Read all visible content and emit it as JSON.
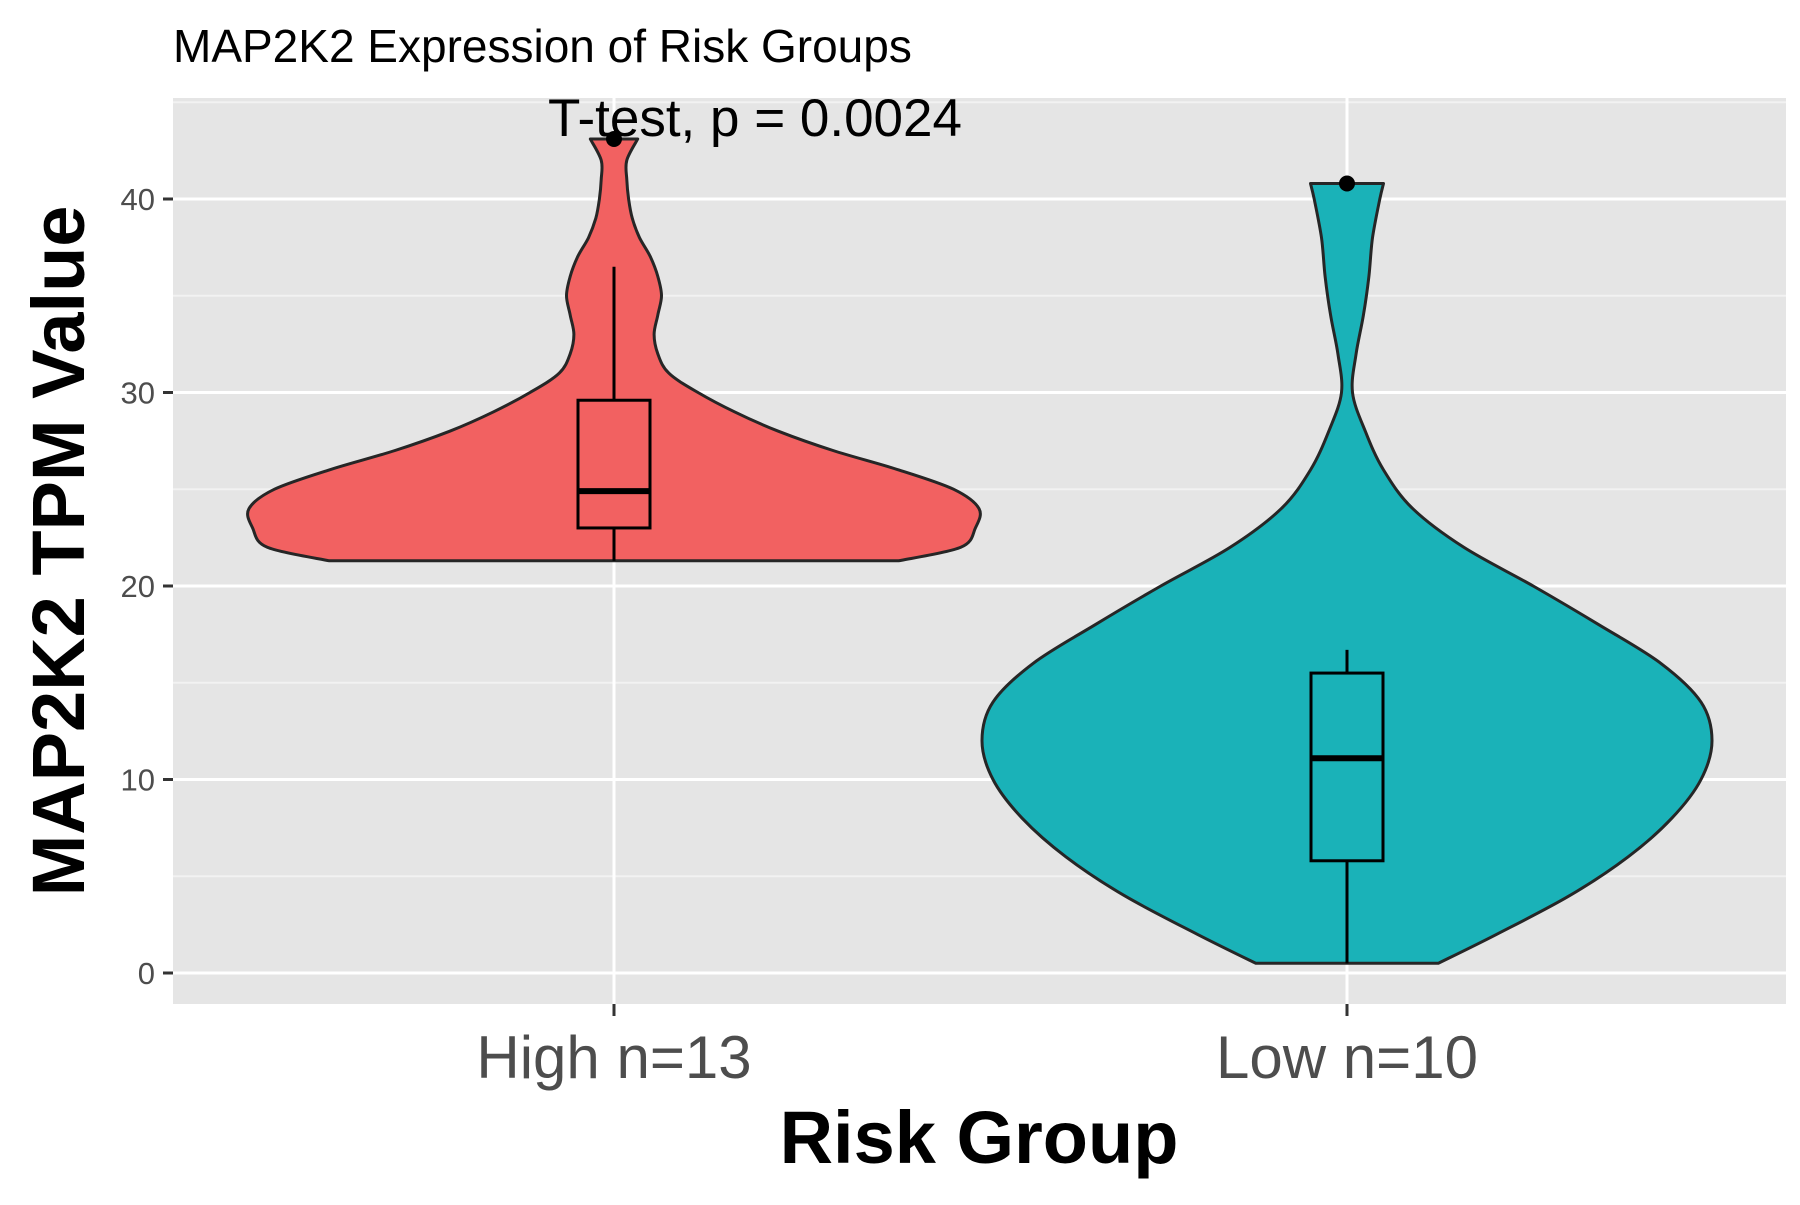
{
  "chart_data": {
    "type": "violin",
    "title": "MAP2K2 Expression of Risk Groups",
    "annotation": "T-test, p = 0.0024",
    "xlabel": "Risk Group",
    "ylabel": "MAP2K2 TPM Value",
    "ylim": [
      -1.5,
      45
    ],
    "y_ticks": [
      0,
      10,
      20,
      30,
      40
    ],
    "grid": true,
    "legend": "none",
    "categories": [
      "High n=13",
      "Low n=10"
    ],
    "groups": [
      {
        "label": "High n=13",
        "fill": "#F26161",
        "box": {
          "min": 21.3,
          "q1": 23.0,
          "median": 24.9,
          "q3": 29.6,
          "whisker_max": 36.5,
          "max": 43.1
        },
        "outliers": [
          43.1
        ],
        "density": [
          [
            21.3,
            0.78
          ],
          [
            22.0,
            0.95
          ],
          [
            23.0,
            0.99
          ],
          [
            24.0,
            1.0
          ],
          [
            25.0,
            0.93
          ],
          [
            26.0,
            0.78
          ],
          [
            27.0,
            0.6
          ],
          [
            28.0,
            0.45
          ],
          [
            29.0,
            0.33
          ],
          [
            30.0,
            0.23
          ],
          [
            31.0,
            0.15
          ],
          [
            32.0,
            0.12
          ],
          [
            33.0,
            0.11
          ],
          [
            34.0,
            0.12
          ],
          [
            35.0,
            0.13
          ],
          [
            36.0,
            0.12
          ],
          [
            37.0,
            0.1
          ],
          [
            38.0,
            0.07
          ],
          [
            39.0,
            0.05
          ],
          [
            40.0,
            0.04
          ],
          [
            41.0,
            0.035
          ],
          [
            42.0,
            0.035
          ],
          [
            43.1,
            0.065
          ]
        ]
      },
      {
        "label": "Low n=10",
        "fill": "#1AB2B8",
        "box": {
          "min": 0.5,
          "q1": 5.8,
          "median": 11.1,
          "q3": 15.5,
          "whisker_max": 16.7,
          "max": 40.8
        },
        "outliers": [
          40.8
        ],
        "density": [
          [
            0.5,
            0.25
          ],
          [
            2.0,
            0.41
          ],
          [
            4.0,
            0.61
          ],
          [
            6.0,
            0.77
          ],
          [
            8.0,
            0.89
          ],
          [
            10.0,
            0.97
          ],
          [
            12.0,
            1.0
          ],
          [
            14.0,
            0.97
          ],
          [
            16.0,
            0.86
          ],
          [
            18.0,
            0.69
          ],
          [
            20.0,
            0.51
          ],
          [
            22.0,
            0.32
          ],
          [
            24.0,
            0.18
          ],
          [
            26.0,
            0.1
          ],
          [
            28.0,
            0.05
          ],
          [
            30.0,
            0.015
          ],
          [
            32.0,
            0.025
          ],
          [
            34.0,
            0.045
          ],
          [
            36.0,
            0.06
          ],
          [
            38.0,
            0.07
          ],
          [
            40.0,
            0.09
          ],
          [
            40.8,
            0.1
          ]
        ]
      }
    ]
  }
}
